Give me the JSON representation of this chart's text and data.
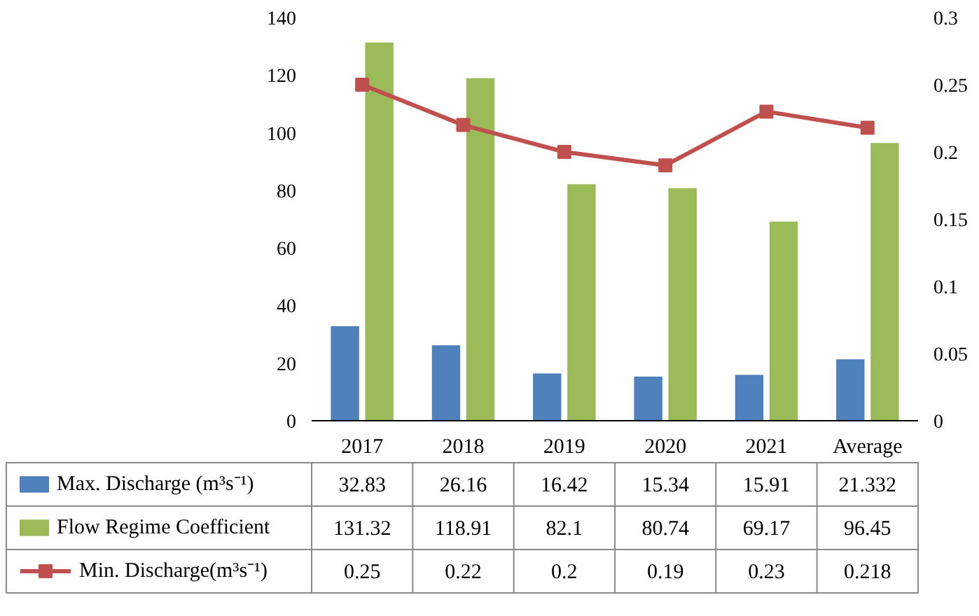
{
  "chart_data": {
    "type": "bar",
    "categories": [
      "2017",
      "2018",
      "2019",
      "2020",
      "2021",
      "Average"
    ],
    "series": [
      {
        "name": "Max. Discharge (m³s⁻¹)",
        "color": "#4f81bd",
        "values": [
          32.83,
          26.16,
          16.42,
          15.34,
          15.91,
          21.332
        ]
      },
      {
        "name": "Flow Regime Coefficient",
        "color": "#9bbb59",
        "values": [
          131.32,
          118.91,
          82.1,
          80.74,
          69.17,
          96.45
        ]
      },
      {
        "name": "Min. Discharge(m³s⁻¹)",
        "color": "#c0504d",
        "type": "line",
        "axis": "y2",
        "marker": "square",
        "values": [
          0.25,
          0.22,
          0.2,
          0.19,
          0.23,
          0.218
        ]
      }
    ],
    "ylim": [
      0,
      140
    ],
    "yticks": [
      0,
      20,
      40,
      60,
      80,
      100,
      120,
      140
    ],
    "y2lim": [
      0,
      0.3
    ],
    "y2ticks": [
      0,
      0.05,
      0.1,
      0.15,
      0.2,
      0.25,
      0.3
    ],
    "data_labels": true,
    "legend": "bottom",
    "grid": false
  }
}
